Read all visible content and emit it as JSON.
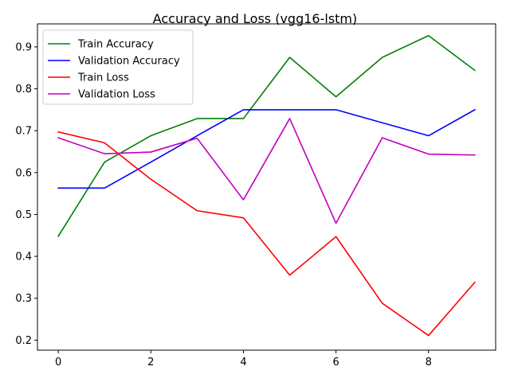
{
  "chart_data": {
    "type": "line",
    "title": "Accuracy and Loss (vgg16-lstm)",
    "xlabel": "",
    "ylabel": "",
    "x": [
      0,
      1,
      2,
      3,
      4,
      5,
      6,
      7,
      8,
      9
    ],
    "xlim": [
      -0.45,
      9.45
    ],
    "ylim": [
      0.176,
      0.955
    ],
    "xticks": [
      0,
      2,
      4,
      6,
      8
    ],
    "yticks": [
      0.2,
      0.3,
      0.4,
      0.5,
      0.6,
      0.7,
      0.8,
      0.9
    ],
    "xtick_labels": [
      "0",
      "2",
      "4",
      "6",
      "8"
    ],
    "ytick_labels": [
      "0.2",
      "0.3",
      "0.4",
      "0.5",
      "0.6",
      "0.7",
      "0.8",
      "0.9"
    ],
    "grid": false,
    "legend_position": "top-left",
    "series": [
      {
        "name": "Train Accuracy",
        "color": "#008000",
        "values": [
          0.448,
          0.625,
          0.688,
          0.729,
          0.729,
          0.875,
          0.781,
          0.875,
          0.927,
          0.844
        ]
      },
      {
        "name": "Validation Accuracy",
        "color": "#0000ff",
        "values": [
          0.563,
          0.563,
          0.625,
          0.688,
          0.75,
          0.75,
          0.75,
          0.719,
          0.688,
          0.75
        ]
      },
      {
        "name": "Train Loss",
        "color": "#ff0000",
        "values": [
          0.697,
          0.671,
          0.584,
          0.509,
          0.492,
          0.355,
          0.447,
          0.288,
          0.211,
          0.338
        ]
      },
      {
        "name": "Validation Loss",
        "color": "#bf00bf",
        "values": [
          0.683,
          0.645,
          0.649,
          0.682,
          0.535,
          0.729,
          0.479,
          0.683,
          0.644,
          0.642
        ]
      }
    ]
  }
}
